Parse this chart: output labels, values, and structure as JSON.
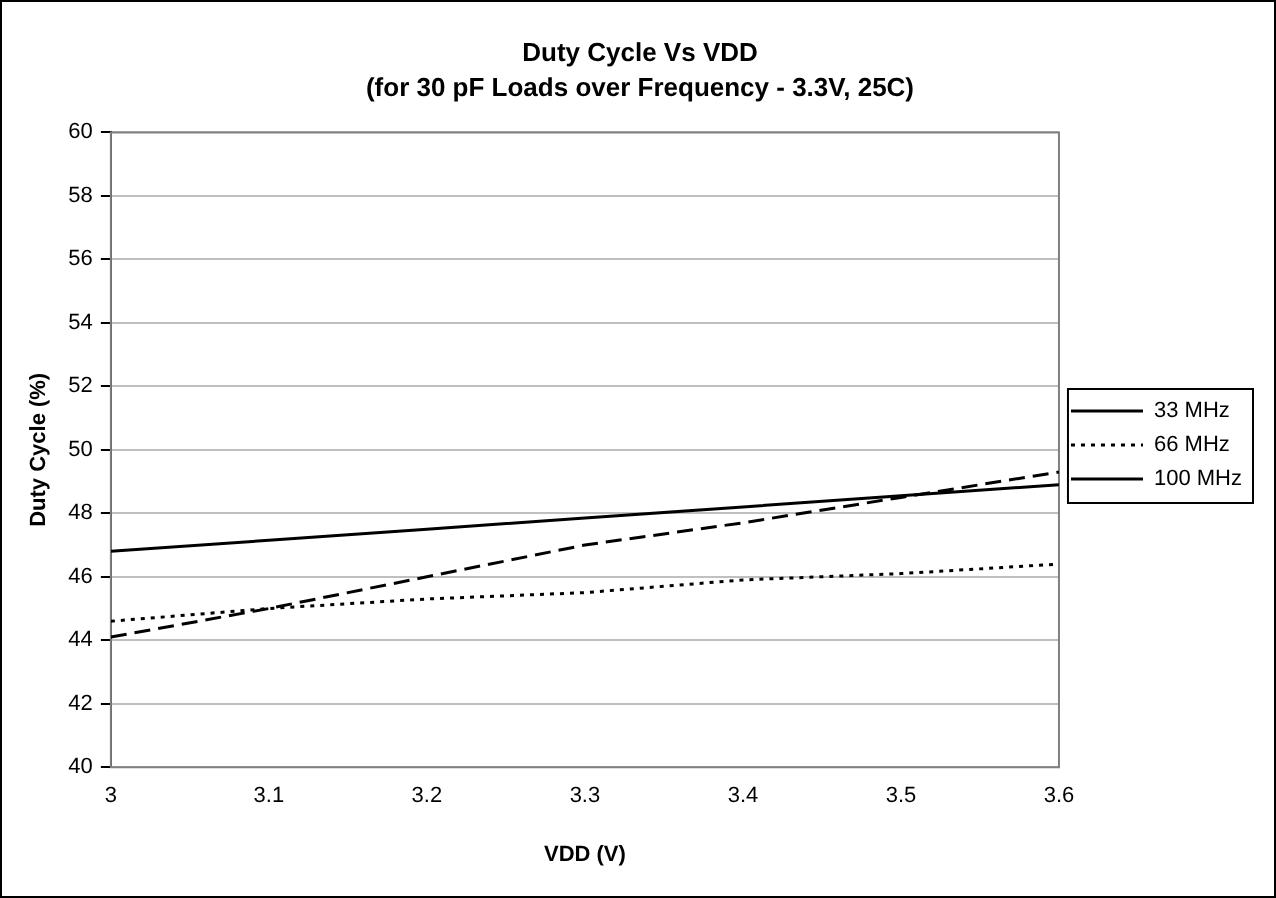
{
  "chart_data": {
    "type": "line",
    "title": "Duty Cycle Vs VDD",
    "subtitle": "(for 30 pF Loads over Frequency - 3.3V, 25C)",
    "xlabel": "VDD (V)",
    "ylabel": "Duty Cycle (%)",
    "x": [
      3,
      3.1,
      3.2,
      3.3,
      3.4,
      3.5,
      3.6
    ],
    "series": [
      {
        "name": "33 MHz",
        "color": "#000000",
        "line_style": "solid",
        "values": [
          46.8,
          47.15,
          47.5,
          47.85,
          48.2,
          48.55,
          48.9
        ]
      },
      {
        "name": "66 MHz",
        "color": "#000000",
        "line_style": "dotted",
        "values": [
          44.6,
          45.0,
          45.3,
          45.5,
          45.9,
          46.1,
          46.4
        ]
      },
      {
        "name": "100 MHz",
        "color": "#000000",
        "line_style": "dashed",
        "values": [
          44.1,
          45.0,
          46.0,
          47.0,
          47.7,
          48.5,
          49.3
        ]
      }
    ],
    "xlim": [
      3,
      3.6
    ],
    "xticks": [
      3,
      3.1,
      3.2,
      3.3,
      3.4,
      3.5,
      3.6
    ],
    "ylim": [
      40,
      60
    ],
    "yticks": [
      40,
      42,
      44,
      46,
      48,
      50,
      52,
      54,
      56,
      58,
      60
    ],
    "grid": "y",
    "legend": "right",
    "marker": "none"
  }
}
